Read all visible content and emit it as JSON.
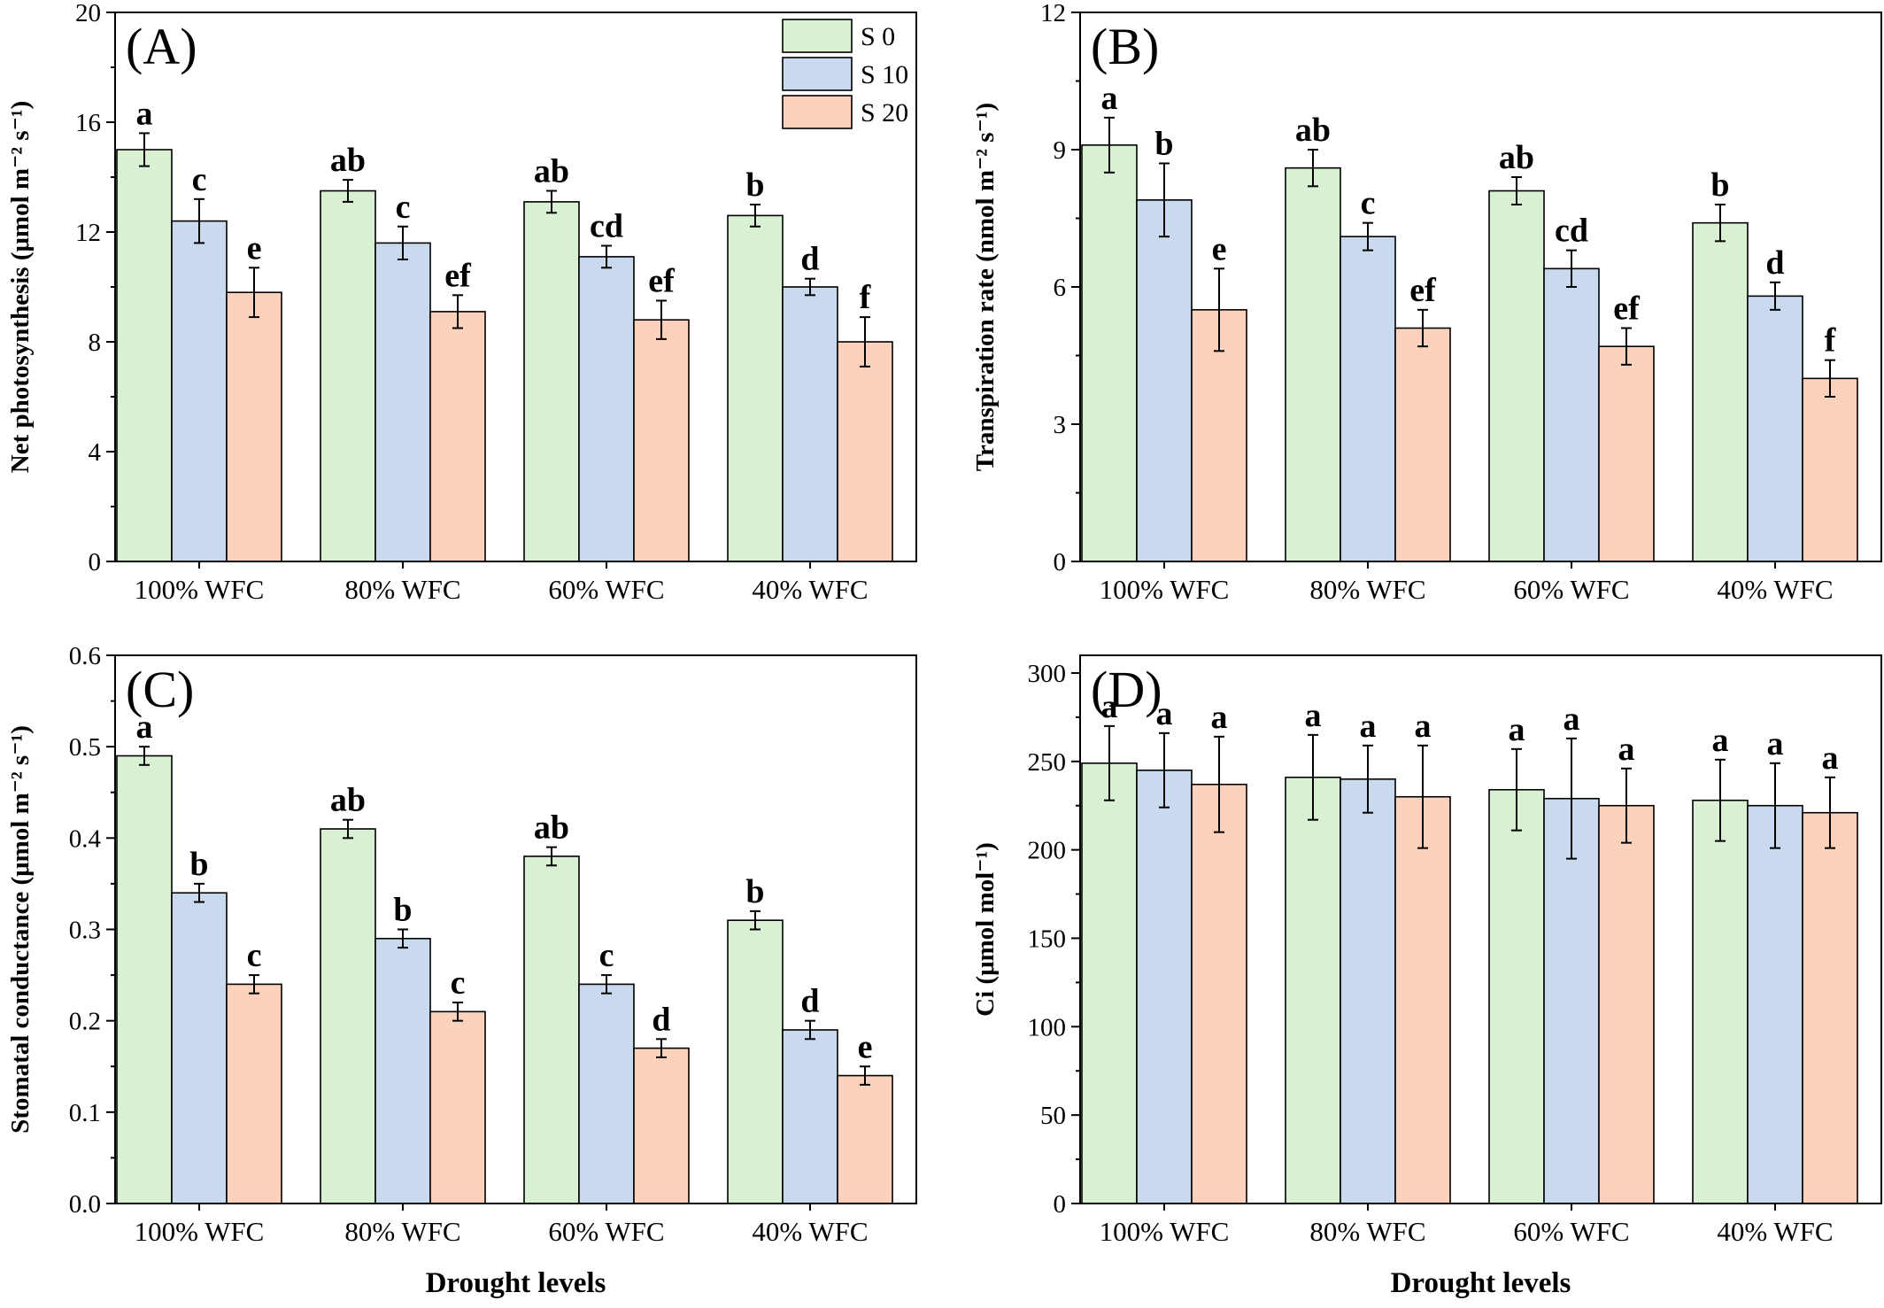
{
  "legend": [
    {
      "name": "S 0",
      "color": "#d9f0d3"
    },
    {
      "name": "S 10",
      "color": "#c9daee"
    },
    {
      "name": "S 20",
      "color": "#fcd2bc"
    }
  ],
  "chart_data": [
    {
      "type": "bar",
      "panel": "(A)",
      "ylabel": "Net photosynthesis (μmol m⁻² s⁻¹)",
      "xlabel": "",
      "categories": [
        "100% WFC",
        "80% WFC",
        "60% WFC",
        "40% WFC"
      ],
      "ylim": [
        0,
        20
      ],
      "yticks": [
        "0",
        "4",
        "8",
        "12",
        "16",
        "20"
      ],
      "grid": false,
      "legend_position": "top-right",
      "series": [
        {
          "name": "S 0",
          "values": [
            15.0,
            13.5,
            13.1,
            12.6
          ],
          "errors": [
            0.6,
            0.4,
            0.4,
            0.4
          ],
          "letters": [
            "a",
            "ab",
            "ab",
            "b"
          ]
        },
        {
          "name": "S 10",
          "values": [
            12.4,
            11.6,
            11.1,
            10.0
          ],
          "errors": [
            0.8,
            0.6,
            0.4,
            0.3
          ],
          "letters": [
            "c",
            "c",
            "cd",
            "d"
          ]
        },
        {
          "name": "S 20",
          "values": [
            9.8,
            9.1,
            8.8,
            8.0
          ],
          "errors": [
            0.9,
            0.6,
            0.7,
            0.9
          ],
          "letters": [
            "e",
            "ef",
            "ef",
            "f"
          ]
        }
      ]
    },
    {
      "type": "bar",
      "panel": "(B)",
      "ylabel": "Transpiration rate (nmol m⁻² s⁻¹)",
      "xlabel": "",
      "categories": [
        "100% WFC",
        "80% WFC",
        "60% WFC",
        "40% WFC"
      ],
      "ylim": [
        0,
        12
      ],
      "yticks": [
        "0",
        "3",
        "6",
        "9",
        "12"
      ],
      "grid": false,
      "series": [
        {
          "name": "S 0",
          "values": [
            9.1,
            8.6,
            8.1,
            7.4
          ],
          "errors": [
            0.6,
            0.4,
            0.3,
            0.4
          ],
          "letters": [
            "a",
            "ab",
            "ab",
            "b"
          ]
        },
        {
          "name": "S 10",
          "values": [
            7.9,
            7.1,
            6.4,
            5.8
          ],
          "errors": [
            0.8,
            0.3,
            0.4,
            0.3
          ],
          "letters": [
            "b",
            "c",
            "cd",
            "d"
          ]
        },
        {
          "name": "S 20",
          "values": [
            5.5,
            5.1,
            4.7,
            4.0
          ],
          "errors": [
            0.9,
            0.4,
            0.4,
            0.4
          ],
          "letters": [
            "e",
            "ef",
            "ef",
            "f"
          ]
        }
      ]
    },
    {
      "type": "bar",
      "panel": "(C)",
      "ylabel": "Stomatal conductance (μmol m⁻² s⁻¹)",
      "xlabel": "Drought levels",
      "categories": [
        "100% WFC",
        "80% WFC",
        "60% WFC",
        "40% WFC"
      ],
      "ylim": [
        0,
        0.6
      ],
      "yticks": [
        "0.0",
        "0.1",
        "0.2",
        "0.3",
        "0.4",
        "0.5",
        "0.6"
      ],
      "grid": false,
      "series": [
        {
          "name": "S 0",
          "values": [
            0.49,
            0.41,
            0.38,
            0.31
          ],
          "errors": [
            0.01,
            0.01,
            0.01,
            0.01
          ],
          "letters": [
            "a",
            "ab",
            "ab",
            "b"
          ]
        },
        {
          "name": "S 10",
          "values": [
            0.34,
            0.29,
            0.24,
            0.19
          ],
          "errors": [
            0.01,
            0.01,
            0.01,
            0.01
          ],
          "letters": [
            "b",
            "b",
            "c",
            "d"
          ]
        },
        {
          "name": "S 20",
          "values": [
            0.24,
            0.21,
            0.17,
            0.14
          ],
          "errors": [
            0.01,
            0.01,
            0.01,
            0.01
          ],
          "letters": [
            "c",
            "c",
            "d",
            "e"
          ]
        }
      ]
    },
    {
      "type": "bar",
      "panel": "(D)",
      "ylabel": "Ci (μmol mol⁻¹)",
      "xlabel": "Drought levels",
      "categories": [
        "100% WFC",
        "80% WFC",
        "60% WFC",
        "40% WFC"
      ],
      "ylim": [
        0,
        310
      ],
      "yticks": [
        "0",
        "50",
        "100",
        "150",
        "200",
        "250",
        "300"
      ],
      "grid": false,
      "series": [
        {
          "name": "S 0",
          "values": [
            249,
            241,
            234,
            228
          ],
          "errors": [
            21,
            24,
            23,
            23
          ],
          "letters": [
            "a",
            "a",
            "a",
            "a"
          ]
        },
        {
          "name": "S 10",
          "values": [
            245,
            240,
            229,
            225
          ],
          "errors": [
            21,
            19,
            34,
            24
          ],
          "letters": [
            "a",
            "a",
            "a",
            "a"
          ]
        },
        {
          "name": "S 20",
          "values": [
            237,
            230,
            225,
            221
          ],
          "errors": [
            27,
            29,
            21,
            20
          ],
          "letters": [
            "a",
            "a",
            "a",
            "a"
          ]
        }
      ]
    }
  ]
}
